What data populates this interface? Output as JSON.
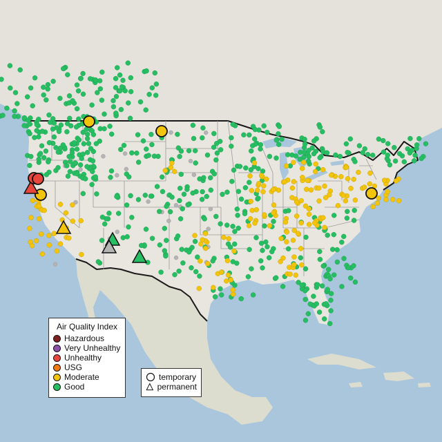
{
  "legend": {
    "title": "Air Quality Index",
    "items": [
      {
        "label": "Hazardous",
        "color": "#7e1e1e"
      },
      {
        "label": "Very Unhealthy",
        "color": "#8b4fa6"
      },
      {
        "label": "Unhealthy",
        "color": "#e8453c"
      },
      {
        "label": "USG",
        "color": "#ee7a10"
      },
      {
        "label": "Moderate",
        "color": "#f2c40c"
      },
      {
        "label": "Good",
        "color": "#27bd62"
      }
    ]
  },
  "shape_legend": {
    "temporary": {
      "label": "temporary",
      "shape": "circle"
    },
    "permanent": {
      "label": "permanent",
      "shape": "triangle"
    }
  },
  "colors": {
    "water": "#a9c6dd",
    "land": "#e6e4dc",
    "land_alt": "#d9dccf",
    "border": "#1a1a1a",
    "state_line": "#9a9a9a",
    "no_data": "#b4b4b4"
  }
}
